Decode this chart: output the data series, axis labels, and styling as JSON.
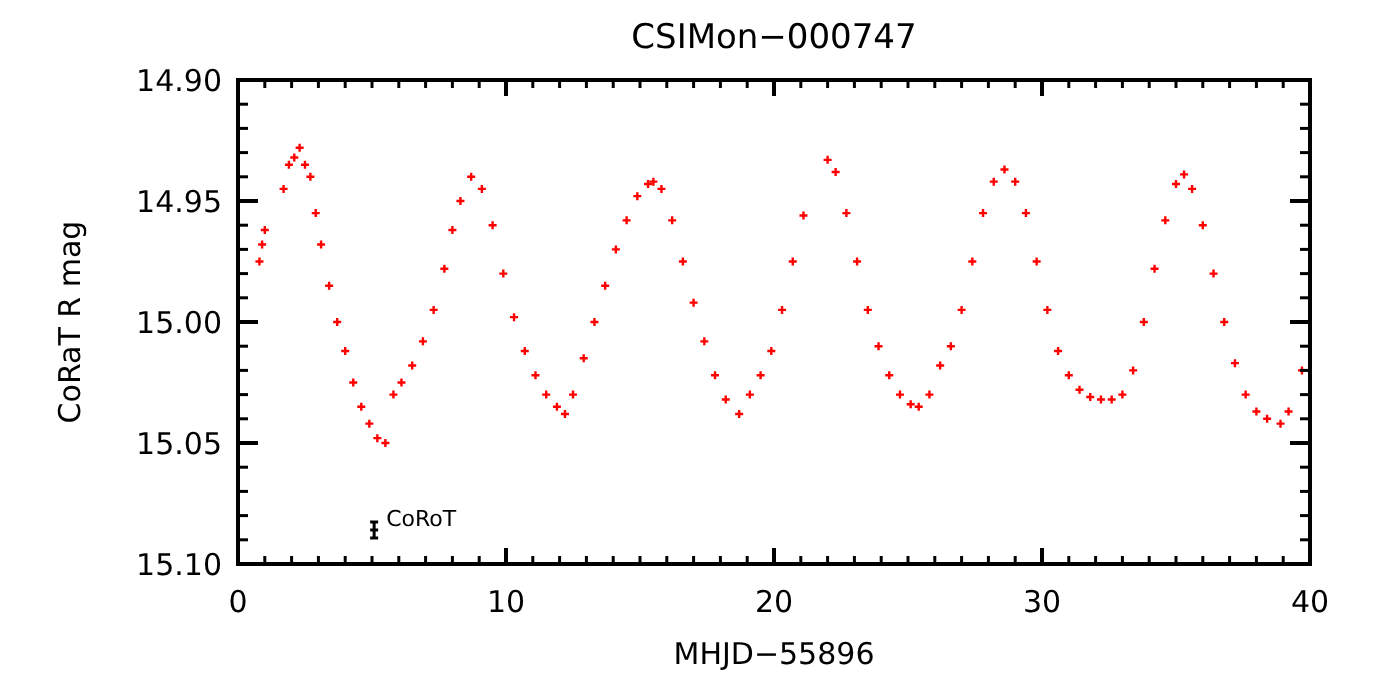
{
  "chart_data": {
    "type": "scatter",
    "title": "CSIMon−000747",
    "xlabel": "MHJD−55896",
    "ylabel": "CoRaT R mag",
    "marker": "cross",
    "grid": false,
    "xlim": [
      0,
      40
    ],
    "xticks": [
      0,
      10,
      20,
      30,
      40
    ],
    "ylim": [
      15.1,
      14.9
    ],
    "yticks": [
      {
        "value": 14.9,
        "label": "14.90"
      },
      {
        "value": 14.95,
        "label": "14.95"
      },
      {
        "value": 15.0,
        "label": "15.00"
      },
      {
        "value": 15.05,
        "label": "15.05"
      },
      {
        "value": 15.1,
        "label": "15.10"
      }
    ],
    "annotations": [
      "CoRoT"
    ],
    "series": [
      {
        "color": "#ff0000",
        "x": [
          0.8,
          0.9,
          1.0,
          1.7,
          1.9,
          2.1,
          2.3,
          2.5,
          2.7,
          2.9,
          3.1,
          3.4,
          3.7,
          4.0,
          4.3,
          4.6,
          4.9,
          5.2,
          5.5,
          5.8,
          6.1,
          6.5,
          6.9,
          7.3,
          7.7,
          8.0,
          8.3,
          8.7,
          9.1,
          9.5,
          9.9,
          10.3,
          10.7,
          11.1,
          11.5,
          11.9,
          12.2,
          12.5,
          12.9,
          13.3,
          13.7,
          14.1,
          14.5,
          14.9,
          15.3,
          15.5,
          15.8,
          16.2,
          16.6,
          17.0,
          17.4,
          17.8,
          18.2,
          18.7,
          19.1,
          19.5,
          19.9,
          20.3,
          20.7,
          21.1,
          22.0,
          22.3,
          22.7,
          23.1,
          23.5,
          23.9,
          24.3,
          24.7,
          25.1,
          25.4,
          25.8,
          26.2,
          26.6,
          27.0,
          27.4,
          27.8,
          28.2,
          28.6,
          29.0,
          29.4,
          29.8,
          30.2,
          30.6,
          31.0,
          31.4,
          31.8,
          32.2,
          32.6,
          33.0,
          33.4,
          33.8,
          34.2,
          34.6,
          35.0,
          35.3,
          35.6,
          36.0,
          36.4,
          36.8,
          37.2,
          37.6,
          38.0,
          38.4,
          38.9,
          39.2,
          39.7
        ],
        "values": [
          14.975,
          14.968,
          14.962,
          14.945,
          14.935,
          14.932,
          14.928,
          14.935,
          14.94,
          14.955,
          14.968,
          14.985,
          15.0,
          15.012,
          15.025,
          15.035,
          15.042,
          15.048,
          15.05,
          15.03,
          15.025,
          15.018,
          15.008,
          14.995,
          14.978,
          14.962,
          14.95,
          14.94,
          14.945,
          14.96,
          14.98,
          14.998,
          15.012,
          15.022,
          15.03,
          15.035,
          15.038,
          15.03,
          15.015,
          15.0,
          14.985,
          14.97,
          14.958,
          14.948,
          14.943,
          14.942,
          14.945,
          14.958,
          14.975,
          14.992,
          15.008,
          15.022,
          15.032,
          15.038,
          15.03,
          15.022,
          15.012,
          14.995,
          14.975,
          14.956,
          14.933,
          14.938,
          14.955,
          14.975,
          14.995,
          15.01,
          15.022,
          15.03,
          15.034,
          15.035,
          15.03,
          15.018,
          15.01,
          14.995,
          14.975,
          14.955,
          14.942,
          14.937,
          14.942,
          14.955,
          14.975,
          14.995,
          15.012,
          15.022,
          15.028,
          15.031,
          15.032,
          15.032,
          15.03,
          15.02,
          15.0,
          14.978,
          14.958,
          14.943,
          14.939,
          14.945,
          14.96,
          14.98,
          15.0,
          15.017,
          15.03,
          15.037,
          15.04,
          15.042,
          15.037,
          15.02
        ]
      }
    ]
  }
}
